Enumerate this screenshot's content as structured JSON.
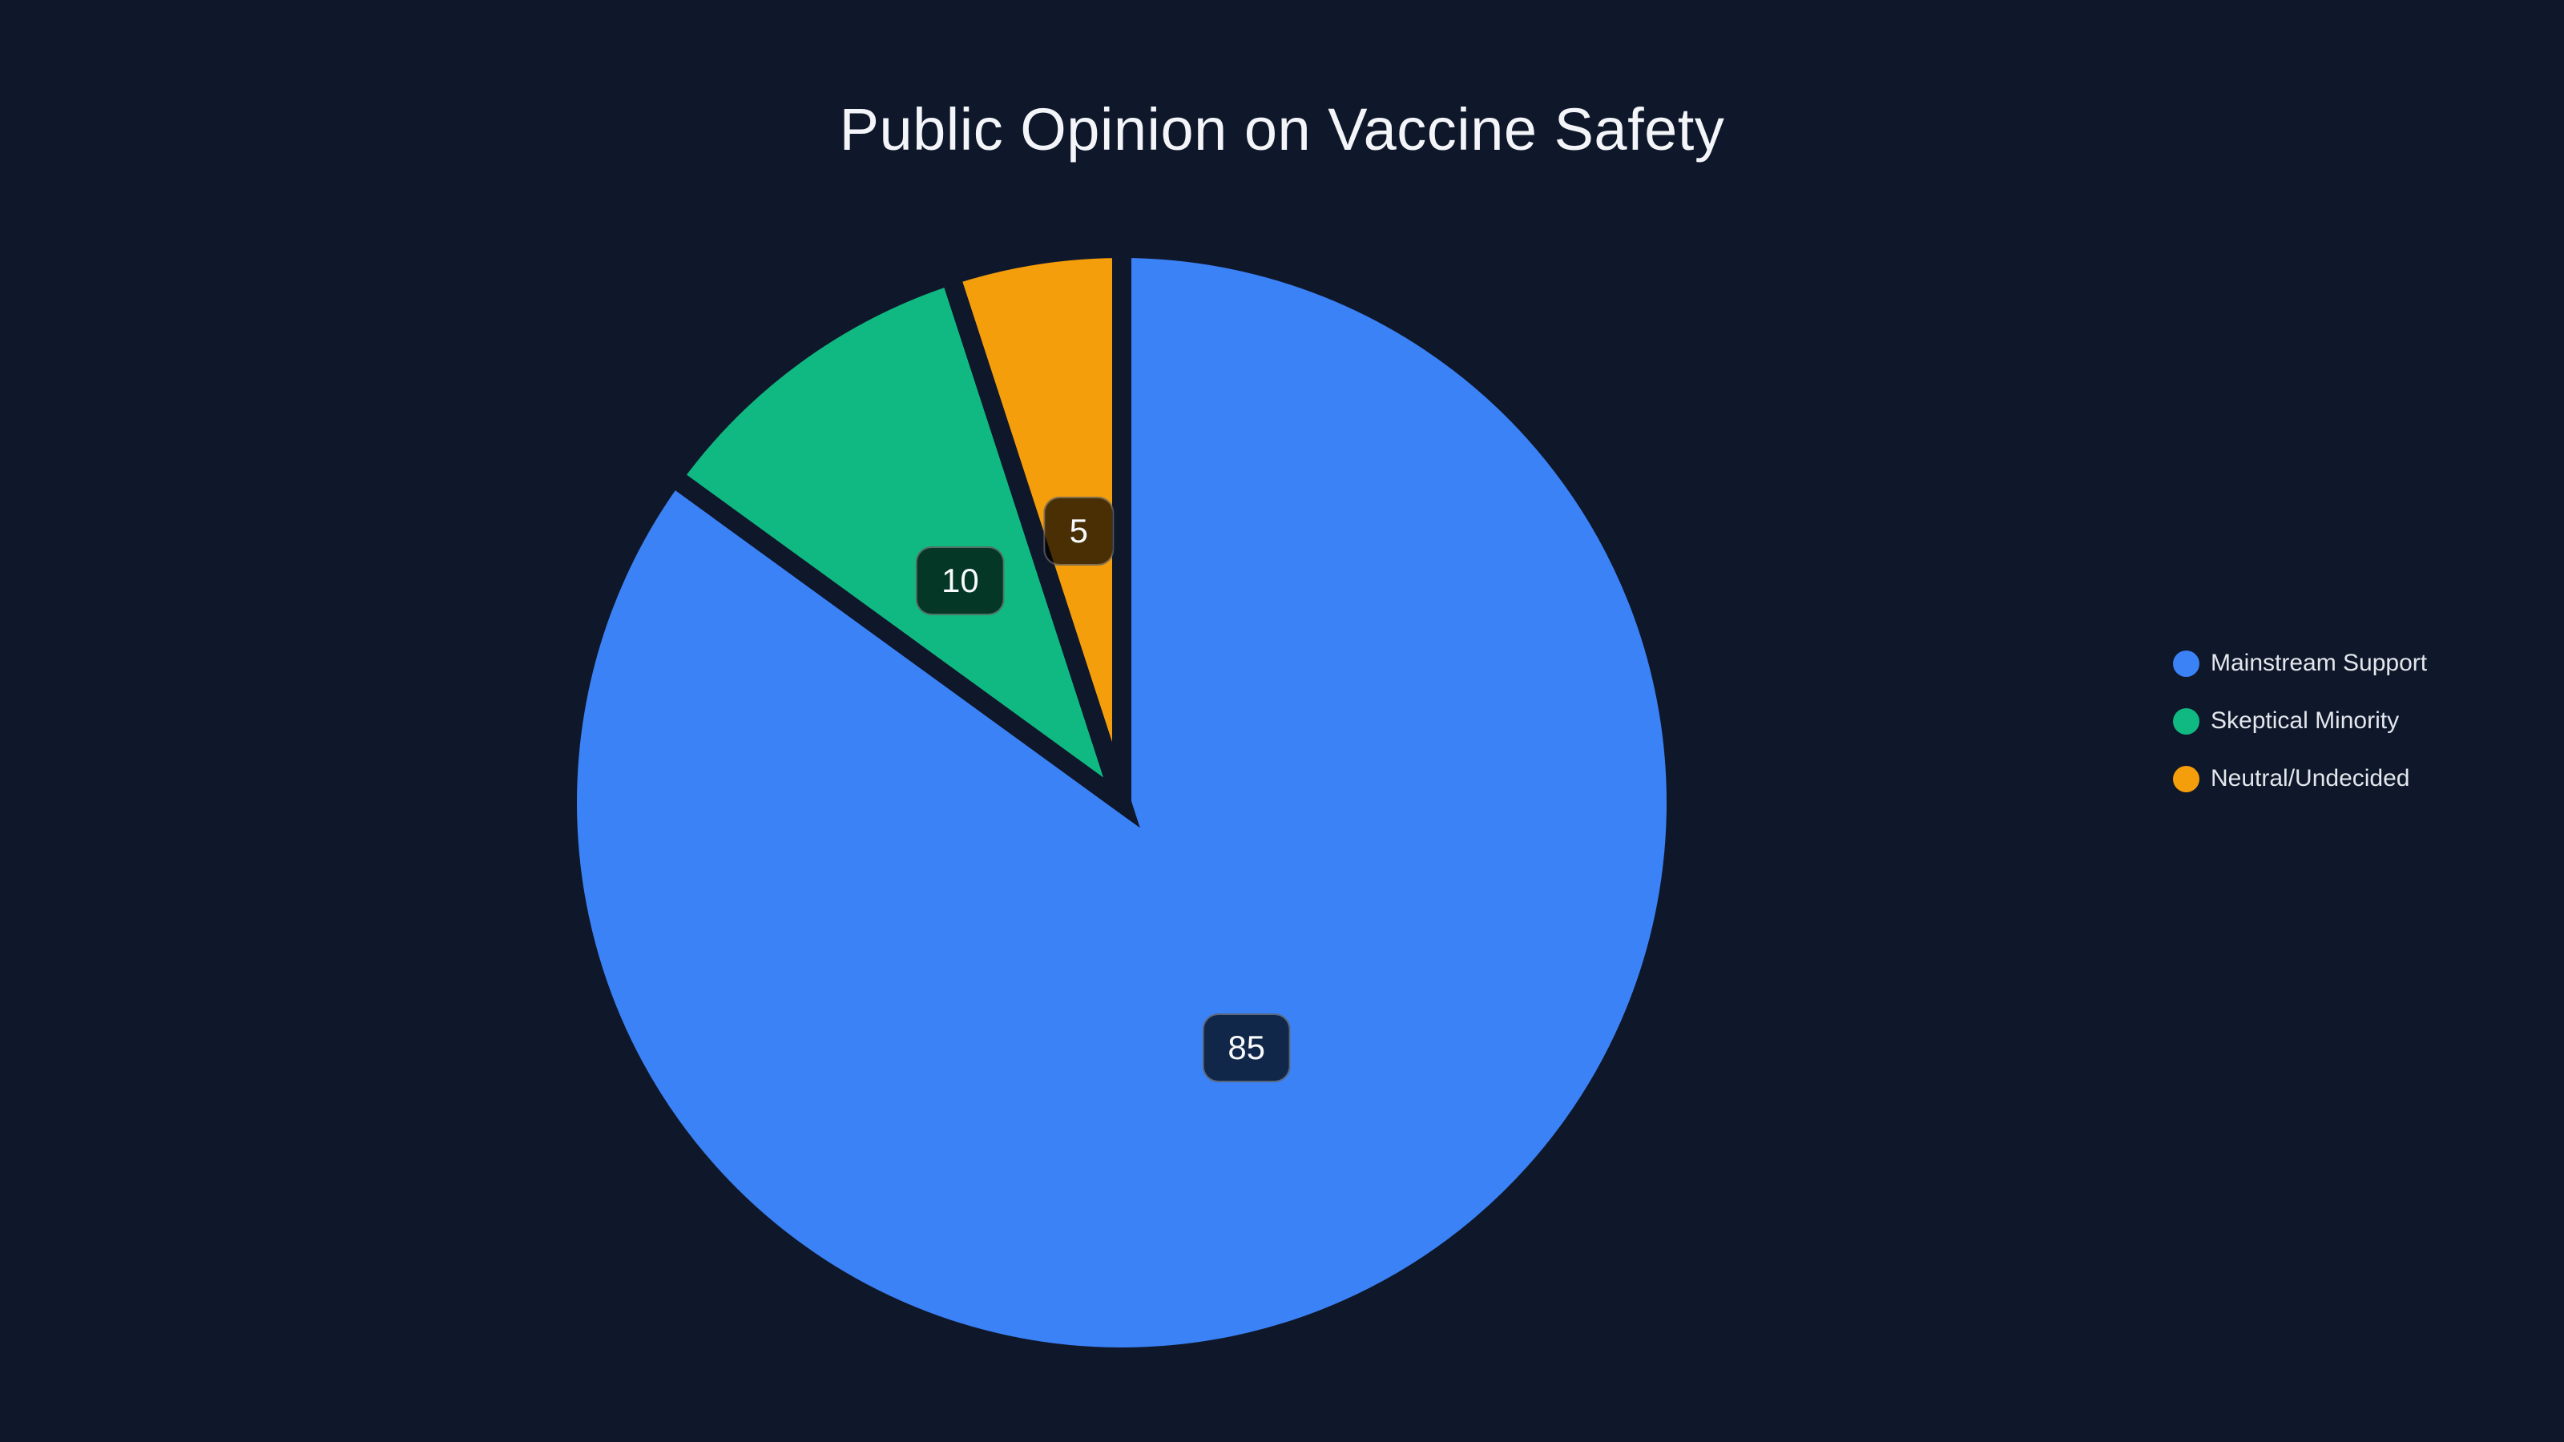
{
  "title": "Public Opinion on Vaccine Safety",
  "colors": {
    "background": "#0f172a",
    "title_text": "#f3f5f9",
    "legend_text": "#e3e7ec",
    "label_text": "#f8fafc",
    "label_background": "rgba(0,0,0,0.7)",
    "label_border": "rgba(255,255,255,0.3)",
    "blue": "#3b82f6",
    "green": "#10b981",
    "orange": "#f59e0b"
  },
  "chart_data": {
    "type": "pie",
    "title": "Public Opinion on Vaccine Safety",
    "categories": [
      "Mainstream Support",
      "Skeptical Minority",
      "Neutral/Undecided"
    ],
    "values": [
      85,
      10,
      5
    ],
    "data_labels": [
      "85",
      "10",
      "5"
    ],
    "slice_colors": [
      "#3b82f6",
      "#10b981",
      "#f59e0b"
    ],
    "start_angle_deg": 0,
    "direction": "clockwise",
    "grid": false,
    "legend_position": "right",
    "legend": [
      {
        "label": "Mainstream Support",
        "color": "#3b82f6"
      },
      {
        "label": "Skeptical Minority",
        "color": "#10b981"
      },
      {
        "label": "Neutral/Undecided",
        "color": "#f59e0b"
      }
    ]
  }
}
